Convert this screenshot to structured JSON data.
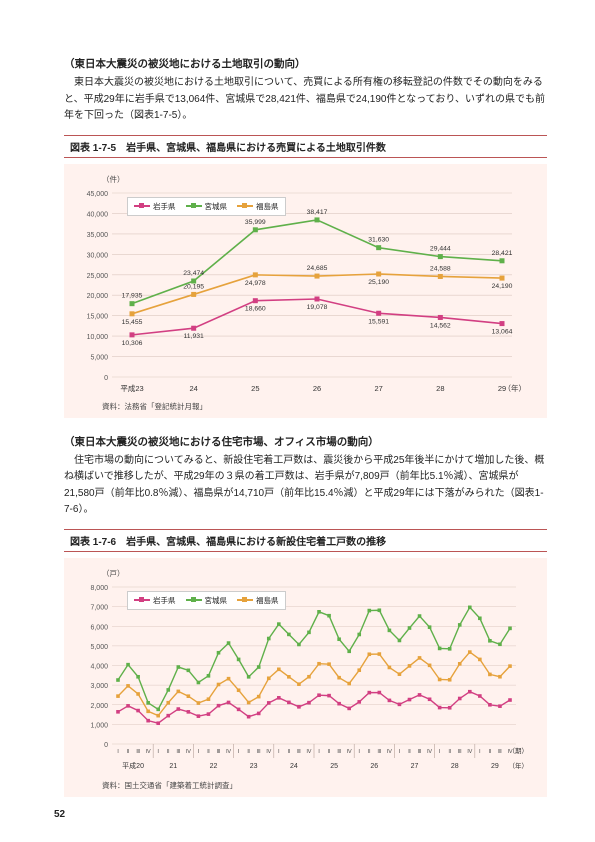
{
  "page_number": "52",
  "section1": {
    "heading": "（東日本大震災の被災地における土地取引の動向）",
    "paragraph": "東日本大震災の被災地における土地取引について、売買による所有権の移転登記の件数でその動向をみると、平成29年に岩手県で13,064件、宮城県で28,421件、福島県で24,190件となっており、いずれの県でも前年を下回った（図表1-7-5）。"
  },
  "figure1": {
    "no": "図表 1-7-5",
    "title": "岩手県、宮城県、福島県における売買による土地取引件数",
    "ylabel": "（件）",
    "xlabel_right": "（年）",
    "source": "資料：法務省「登記統計月報」",
    "legend": [
      "岩手県",
      "宮城県",
      "福島県"
    ],
    "type": "line",
    "colors": {
      "iwate": "#d23f82",
      "miyagi": "#5fb04a",
      "fukushima": "#e6a23c",
      "grid": "#dcc8c0",
      "bg": "#fff2ee",
      "text": "#333333"
    },
    "ylim": [
      0,
      45000
    ],
    "ytick_step": 5000,
    "categories": [
      "平成23",
      "24",
      "25",
      "26",
      "27",
      "28",
      "29"
    ],
    "series": {
      "iwate": [
        10306,
        11931,
        18660,
        19078,
        15591,
        14562,
        13064
      ],
      "miyagi": [
        17935,
        23474,
        35999,
        38417,
        31630,
        29444,
        28421
      ],
      "fukushima": [
        15455,
        20195,
        24978,
        24685,
        25190,
        24588,
        24190
      ]
    }
  },
  "section2": {
    "heading": "（東日本大震災の被災地における住宅市場、オフィス市場の動向）",
    "paragraph": "住宅市場の動向についてみると、新設住宅着工戸数は、震災後から平成25年後半にかけて増加した後、概ね横ばいで推移したが、平成29年の３県の着工戸数は、岩手県が7,809戸（前年比5.1％減）、宮城県が21,580戸（前年比0.8％減）、福島県が14,710戸（前年比15.4％減）と平成29年には下落がみられた（図表1-7-6）。"
  },
  "figure2": {
    "no": "図表 1-7-6",
    "title": "岩手県、宮城県、福島県における新設住宅着工戸数の推移",
    "ylabel": "（戸）",
    "xlabel_right": "（期）",
    "xlabel_right2": "（年）",
    "source": "資料：国土交通省「建築着工統計調査」",
    "legend": [
      "岩手県",
      "宮城県",
      "福島県"
    ],
    "type": "line",
    "colors": {
      "iwate": "#d23f82",
      "miyagi": "#5fb04a",
      "fukushima": "#e6a23c",
      "grid": "#dcc8c0",
      "bg": "#fff2ee"
    },
    "ylim": [
      0,
      8000
    ],
    "ytick_step": 1000,
    "years": [
      "平成20",
      "21",
      "22",
      "23",
      "24",
      "25",
      "26",
      "27",
      "28",
      "29"
    ],
    "quarters": [
      "Ⅰ",
      "Ⅱ",
      "Ⅲ",
      "Ⅳ"
    ]
  }
}
